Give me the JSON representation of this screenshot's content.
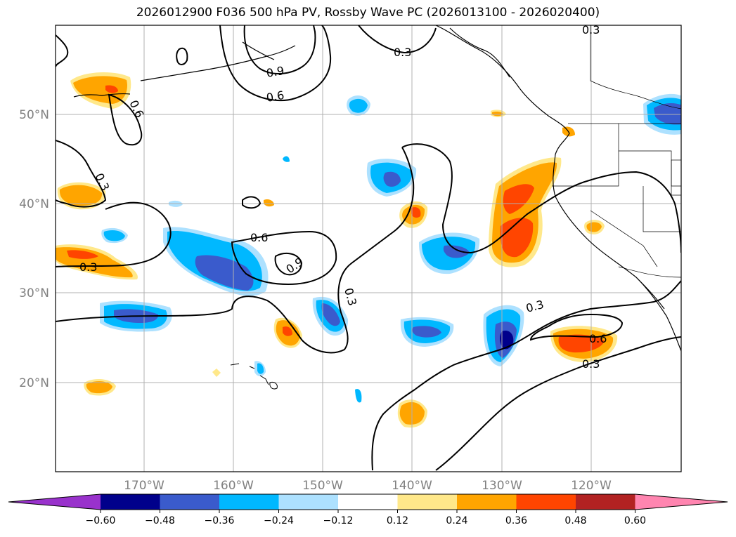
{
  "title": "2026012900 F036 500 hPa PV, Rossby Wave PC (2026013100 - 2026020400)",
  "lat_labels": [
    "50°N",
    "40°N",
    "30°N",
    "20°N"
  ],
  "lon_labels": [
    "170°W",
    "160°W",
    "150°W",
    "140°W",
    "130°W",
    "120°W"
  ],
  "colorbar": {
    "ticks": [
      "−0.60",
      "−0.48",
      "−0.36",
      "−0.24",
      "−0.12",
      "0.12",
      "0.24",
      "0.36",
      "0.48",
      "0.60"
    ],
    "colors": [
      "#9932cc",
      "#00008b",
      "#3a5bcc",
      "#00b8ff",
      "#ade1ff",
      "#ffffff",
      "#ffe88a",
      "#ffa500",
      "#ff4500",
      "#b22222",
      "#ff85b0"
    ]
  },
  "contour_labels": [
    "0.3",
    "0.3",
    "0.3",
    "0.3",
    "0.3",
    "0.3",
    "0.3",
    "0.6",
    "0.6",
    "0.6",
    "0.6",
    "0.9",
    "0.9"
  ]
}
